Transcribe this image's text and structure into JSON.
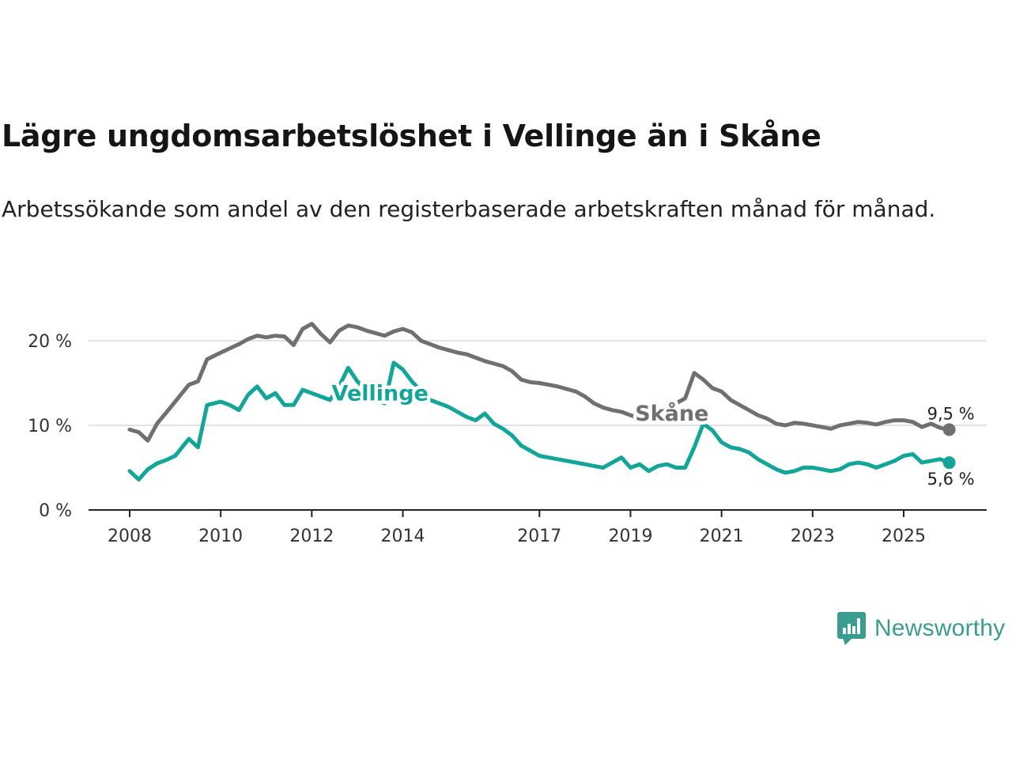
{
  "title": "Lägre ungdomsarbetslöshet i Vellinge än i Skåne",
  "subtitle": "Arbetssökande som andel av den registerbaserade arbetskraften månad för månad.",
  "brand": {
    "name": "Newsworthy",
    "color": "#3a9d8f",
    "icon": "newsworthy-bar-chart-icon"
  },
  "chart_data": {
    "type": "line",
    "title": "Lägre ungdomsarbetslöshet i Vellinge än i Skåne",
    "ylim": [
      0,
      25
    ],
    "yticks": [
      0,
      10,
      20
    ],
    "ytick_labels": [
      "0 %",
      "10 %",
      "20 %"
    ],
    "xlim": [
      2007.8,
      2026.9
    ],
    "xticks": [
      2008,
      2010,
      2012,
      2014,
      2017,
      2019,
      2021,
      2023,
      2025
    ],
    "xtick_labels": [
      "2008",
      "2010",
      "2012",
      "2014",
      "2017",
      "2019",
      "2021",
      "2023",
      "2025"
    ],
    "grid": true,
    "series": [
      {
        "name": "Skåne",
        "label": "Skåne",
        "color": "#707070",
        "end_label": "9,5 %",
        "end_value": 9.5,
        "x": [
          2008.0,
          2008.2,
          2008.4,
          2008.6,
          2008.8,
          2009.0,
          2009.3,
          2009.5,
          2009.7,
          2010.0,
          2010.2,
          2010.4,
          2010.6,
          2010.8,
          2011.0,
          2011.2,
          2011.4,
          2011.6,
          2011.8,
          2012.0,
          2012.2,
          2012.4,
          2012.6,
          2012.8,
          2013.0,
          2013.2,
          2013.4,
          2013.6,
          2013.8,
          2014.0,
          2014.2,
          2014.4,
          2014.6,
          2014.8,
          2015.0,
          2015.2,
          2015.4,
          2015.6,
          2015.8,
          2016.0,
          2016.2,
          2016.4,
          2016.6,
          2016.8,
          2017.0,
          2017.2,
          2017.4,
          2017.6,
          2017.8,
          2018.0,
          2018.2,
          2018.4,
          2018.6,
          2018.8,
          2019.0,
          2019.2,
          2019.4,
          2019.6,
          2019.8,
          2020.0,
          2020.2,
          2020.4,
          2020.6,
          2020.8,
          2021.0,
          2021.2,
          2021.4,
          2021.6,
          2021.8,
          2022.0,
          2022.2,
          2022.4,
          2022.6,
          2022.8,
          2023.0,
          2023.2,
          2023.4,
          2023.6,
          2023.8,
          2024.0,
          2024.2,
          2024.4,
          2024.6,
          2024.8,
          2025.0,
          2025.2,
          2025.4,
          2025.6,
          2025.8,
          2026.0
        ],
        "y": [
          9.5,
          9.2,
          8.2,
          10.2,
          11.5,
          12.8,
          14.8,
          15.2,
          17.8,
          18.6,
          19.1,
          19.6,
          20.2,
          20.6,
          20.4,
          20.6,
          20.5,
          19.5,
          21.4,
          22.0,
          20.8,
          19.8,
          21.2,
          21.8,
          21.6,
          21.2,
          20.9,
          20.6,
          21.1,
          21.4,
          21.0,
          20.0,
          19.6,
          19.2,
          18.9,
          18.6,
          18.4,
          18.0,
          17.6,
          17.3,
          17.0,
          16.4,
          15.4,
          15.1,
          15.0,
          14.8,
          14.6,
          14.3,
          14.0,
          13.4,
          12.6,
          12.1,
          11.8,
          11.6,
          11.2,
          10.8,
          11.0,
          11.6,
          12.1,
          12.6,
          13.2,
          16.2,
          15.4,
          14.4,
          14.0,
          13.0,
          12.4,
          11.8,
          11.2,
          10.8,
          10.2,
          10.0,
          10.3,
          10.2,
          10.0,
          9.8,
          9.6,
          10.0,
          10.2,
          10.4,
          10.3,
          10.1,
          10.4,
          10.6,
          10.6,
          10.4,
          9.8,
          10.2,
          9.7,
          9.5
        ]
      },
      {
        "name": "Vellinge",
        "label": "Vellinge",
        "color": "#12a598",
        "end_label": "5,6 %",
        "end_value": 5.6,
        "x": [
          2008.0,
          2008.2,
          2008.4,
          2008.6,
          2008.8,
          2009.0,
          2009.3,
          2009.5,
          2009.7,
          2010.0,
          2010.2,
          2010.4,
          2010.6,
          2010.8,
          2011.0,
          2011.2,
          2011.4,
          2011.6,
          2011.8,
          2012.0,
          2012.2,
          2012.4,
          2012.6,
          2012.8,
          2013.0,
          2013.2,
          2013.4,
          2013.6,
          2013.8,
          2014.0,
          2014.2,
          2014.4,
          2014.6,
          2014.8,
          2015.0,
          2015.2,
          2015.4,
          2015.6,
          2015.8,
          2016.0,
          2016.2,
          2016.4,
          2016.6,
          2016.8,
          2017.0,
          2017.2,
          2017.4,
          2017.6,
          2017.8,
          2018.0,
          2018.2,
          2018.4,
          2018.6,
          2018.8,
          2019.0,
          2019.2,
          2019.4,
          2019.6,
          2019.8,
          2020.0,
          2020.2,
          2020.4,
          2020.6,
          2020.8,
          2021.0,
          2021.2,
          2021.4,
          2021.6,
          2021.8,
          2022.0,
          2022.2,
          2022.4,
          2022.6,
          2022.8,
          2023.0,
          2023.2,
          2023.4,
          2023.6,
          2023.8,
          2024.0,
          2024.2,
          2024.4,
          2024.6,
          2024.8,
          2025.0,
          2025.2,
          2025.4,
          2025.6,
          2025.8,
          2026.0
        ],
        "y": [
          4.6,
          3.6,
          4.8,
          5.5,
          5.9,
          6.4,
          8.4,
          7.4,
          12.4,
          12.8,
          12.4,
          11.8,
          13.6,
          14.6,
          13.2,
          13.8,
          12.4,
          12.4,
          14.2,
          13.8,
          13.4,
          13.0,
          14.6,
          16.8,
          15.2,
          14.2,
          13.0,
          12.6,
          17.4,
          16.6,
          15.2,
          14.0,
          13.0,
          12.6,
          12.2,
          11.6,
          11.0,
          10.6,
          11.4,
          10.2,
          9.6,
          8.8,
          7.6,
          7.0,
          6.4,
          6.2,
          6.0,
          5.8,
          5.6,
          5.4,
          5.2,
          5.0,
          5.6,
          6.2,
          5.0,
          5.4,
          4.6,
          5.2,
          5.4,
          5.0,
          5.0,
          7.4,
          10.2,
          9.4,
          8.0,
          7.4,
          7.2,
          6.8,
          6.0,
          5.4,
          4.8,
          4.4,
          4.6,
          5.0,
          5.0,
          4.8,
          4.6,
          4.8,
          5.4,
          5.6,
          5.4,
          5.0,
          5.4,
          5.8,
          6.4,
          6.6,
          5.6,
          5.8,
          6.0,
          5.6
        ]
      }
    ]
  }
}
